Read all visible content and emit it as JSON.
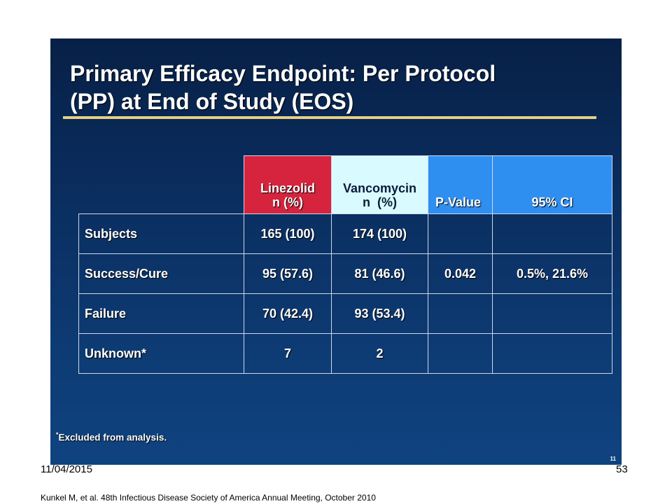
{
  "slide": {
    "title_line1": "Primary Efficacy Endpoint: Per Protocol",
    "title_line2": "(PP) at End of Study (EOS)",
    "footnote_mark": "*",
    "footnote_text": "Excluded from analysis.",
    "small_page_number": "11"
  },
  "table": {
    "headers": {
      "linezolid_line1": "Linezolid",
      "linezolid_line2": "n (%)",
      "vancomycin_line1": "Vancomycin",
      "vancomycin_line2": "n  (%)",
      "pvalue": "P-Value",
      "ci": "95% CI"
    },
    "rows": [
      {
        "label": "Subjects",
        "linezolid": "165 (100)",
        "vancomycin": "174 (100)",
        "pvalue": "",
        "ci": ""
      },
      {
        "label": "Success/Cure",
        "linezolid": "95 (57.6)",
        "vancomycin": "81 (46.6)",
        "pvalue": "0.042",
        "ci": "0.5%, 21.6%"
      },
      {
        "label": "Failure",
        "linezolid": "70 (42.4)",
        "vancomycin": "93 (53.4)",
        "pvalue": "",
        "ci": ""
      },
      {
        "label": "Unknown*",
        "linezolid": "7",
        "vancomycin": "2",
        "pvalue": "",
        "ci": ""
      }
    ]
  },
  "footer": {
    "date": "11/04/2015",
    "page": "53",
    "citation": "Kunkel M, et al. 48th Infectious Disease Society of America Annual Meeting, October 2010"
  },
  "colors": {
    "linezolid_header": "#d6243e",
    "vancomycin_header": "#d9fbff",
    "pvalue_header": "#2f8ff0",
    "title_rule": "#e6cf84",
    "slide_background": "#0a2d5e"
  }
}
